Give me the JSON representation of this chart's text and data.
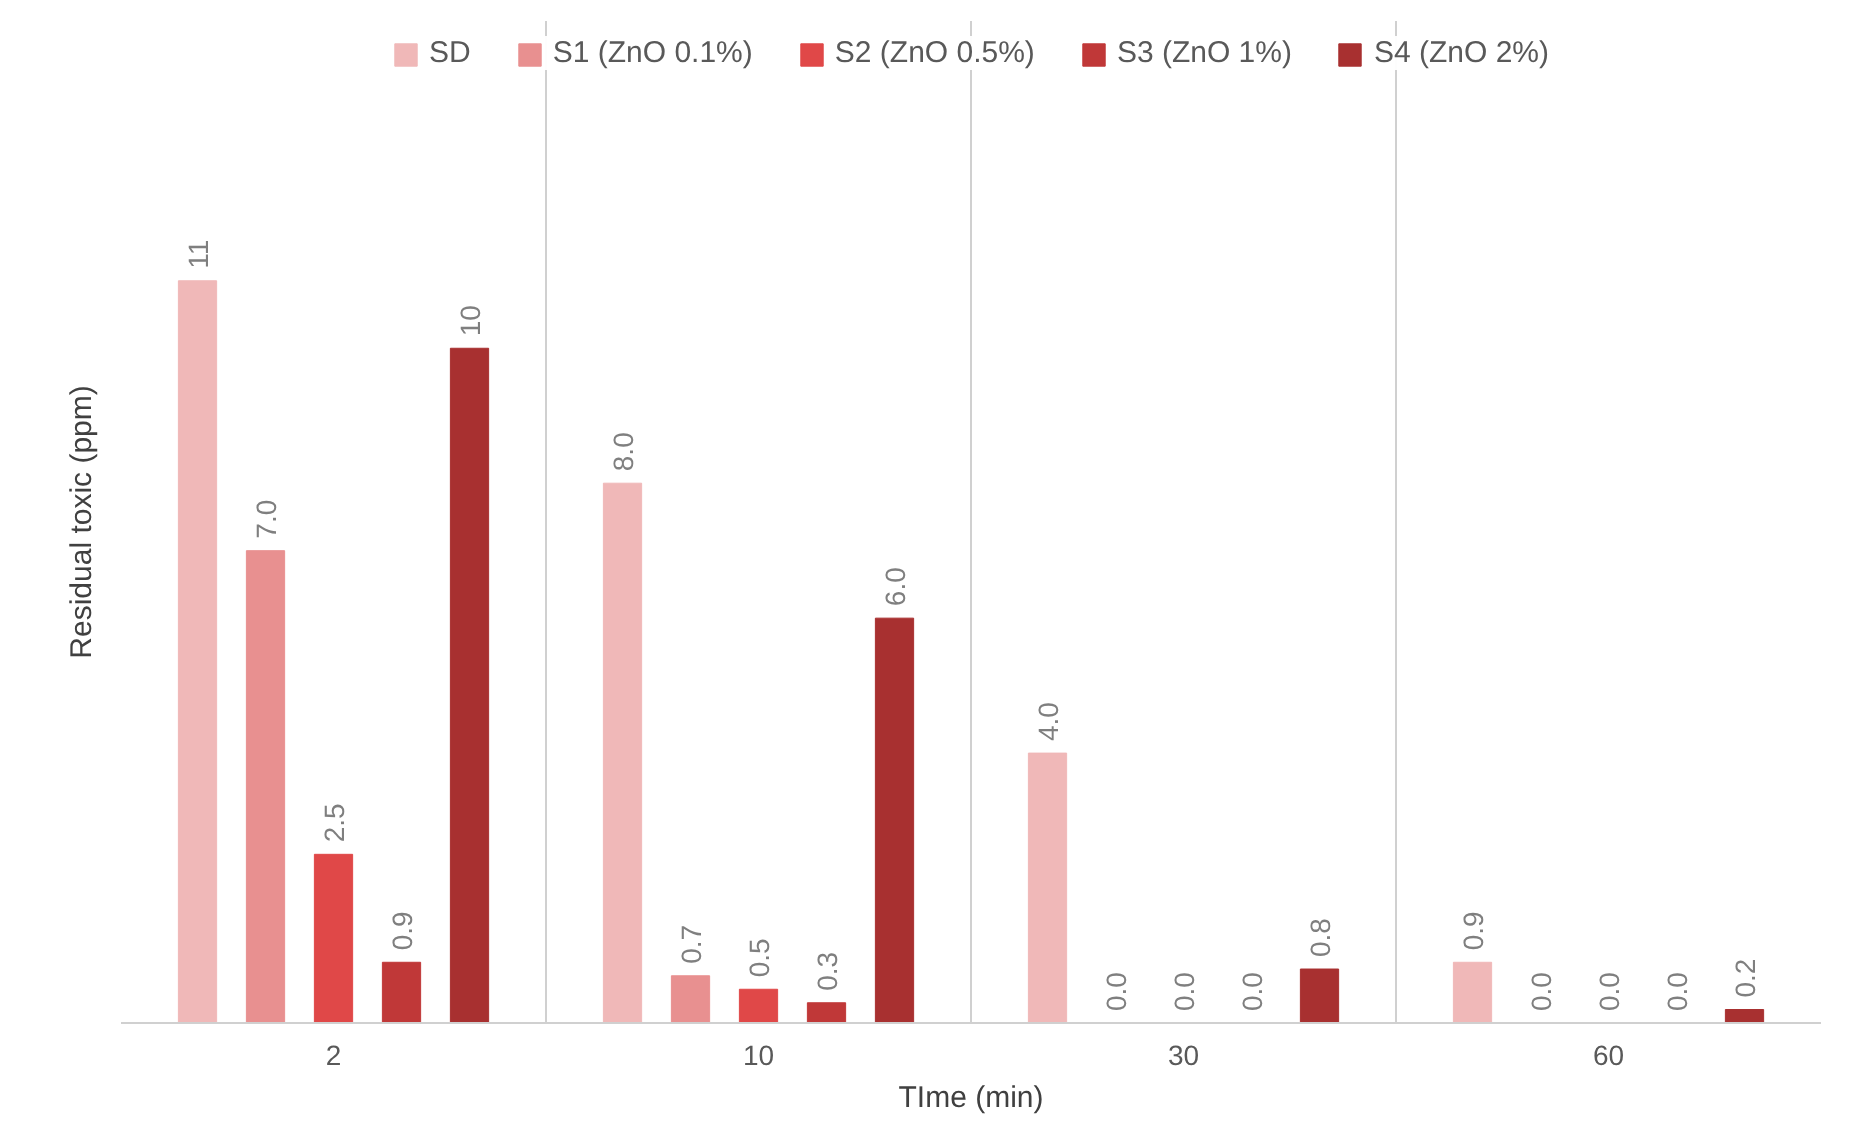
{
  "chart_data": {
    "type": "bar",
    "xlabel": "TIme (min)",
    "ylabel": "Residual toxic (ppm)",
    "categories": [
      "2",
      "10",
      "30",
      "60"
    ],
    "series": [
      {
        "name": "SD",
        "color": "#f0b8b8",
        "values": [
          11,
          8.0,
          4.0,
          0.9
        ],
        "value_labels": [
          "11",
          "8.0",
          "4.0",
          "0.9"
        ]
      },
      {
        "name": "S1 (ZnO 0.1%)",
        "color": "#e89090",
        "values": [
          7.0,
          0.7,
          0.0,
          0.0
        ],
        "value_labels": [
          "7.0",
          "0.7",
          "0.0",
          "0.0"
        ]
      },
      {
        "name": "S2 (ZnO 0.5%)",
        "color": "#e04848",
        "values": [
          2.5,
          0.5,
          0.0,
          0.0
        ],
        "value_labels": [
          "2.5",
          "0.5",
          "0.0",
          "0.0"
        ]
      },
      {
        "name": "S3 (ZnO 1%)",
        "color": "#c03838",
        "values": [
          0.9,
          0.3,
          0.0,
          0.0
        ],
        "value_labels": [
          "0.9",
          "0.3",
          "0.0",
          "0.0"
        ]
      },
      {
        "name": "S4 (ZnO 2%)",
        "color": "#a83030",
        "values": [
          10,
          6.0,
          0.8,
          0.2
        ],
        "value_labels": [
          "10",
          "6.0",
          "0.8",
          "0.2"
        ]
      }
    ],
    "grid": "x",
    "legend": "top"
  }
}
